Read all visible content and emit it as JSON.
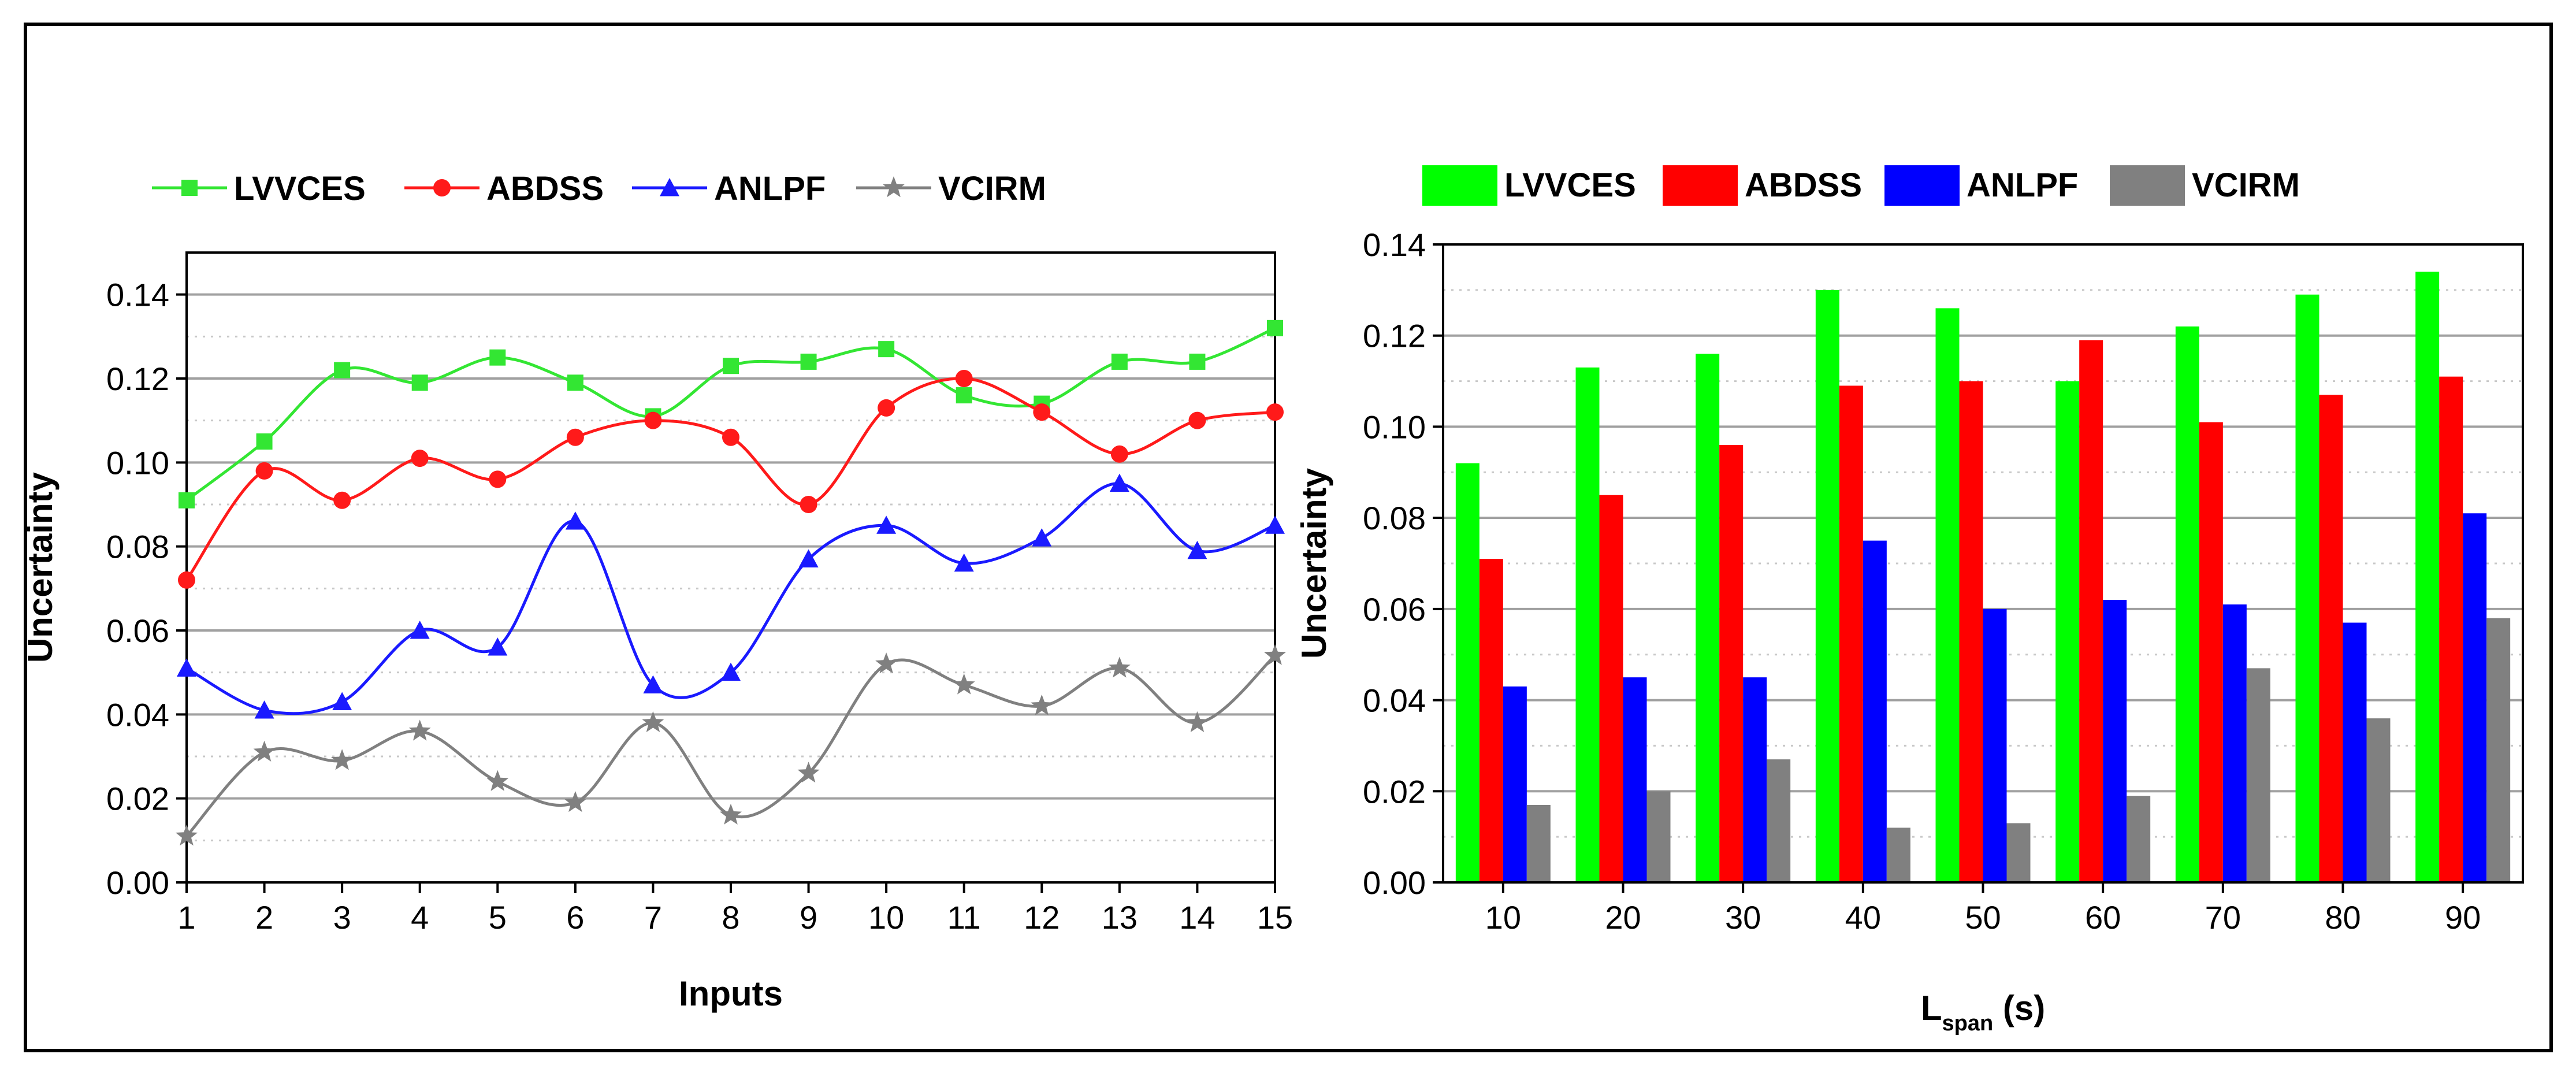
{
  "chart_data": [
    {
      "type": "line",
      "xlabel": "Inputs",
      "ylabel": "Uncertainty",
      "x": [
        1,
        2,
        3,
        4,
        5,
        6,
        7,
        8,
        9,
        10,
        11,
        12,
        13,
        14,
        15
      ],
      "xlim": [
        1,
        15
      ],
      "ylim": [
        0,
        0.15
      ],
      "yticks": [
        "0.00",
        "0.02",
        "0.04",
        "0.06",
        "0.08",
        "0.10",
        "0.12",
        "0.14"
      ],
      "grid": true,
      "legend": "top",
      "series": [
        {
          "name": "LVVCES",
          "color": "#33e633",
          "marker": "square",
          "values": [
            0.091,
            0.105,
            0.122,
            0.119,
            0.125,
            0.119,
            0.111,
            0.123,
            0.124,
            0.127,
            0.116,
            0.114,
            0.124,
            0.124,
            0.132
          ]
        },
        {
          "name": "ABDSS",
          "color": "#ff1a1a",
          "marker": "circle",
          "values": [
            0.072,
            0.098,
            0.091,
            0.101,
            0.096,
            0.106,
            0.11,
            0.106,
            0.09,
            0.113,
            0.12,
            0.112,
            0.102,
            0.11,
            0.112
          ]
        },
        {
          "name": "ANLPF",
          "color": "#1a1aff",
          "marker": "triangle",
          "values": [
            0.051,
            0.041,
            0.043,
            0.06,
            0.056,
            0.086,
            0.047,
            0.05,
            0.077,
            0.085,
            0.076,
            0.082,
            0.095,
            0.079,
            0.085
          ]
        },
        {
          "name": "VCIRM",
          "color": "#808080",
          "marker": "star",
          "values": [
            0.011,
            0.031,
            0.029,
            0.036,
            0.024,
            0.019,
            0.038,
            0.016,
            0.026,
            0.052,
            0.047,
            0.042,
            0.051,
            0.038,
            0.054
          ]
        }
      ]
    },
    {
      "type": "bar",
      "xlabel_main": "L",
      "xlabel_sub": "span",
      "xlabel_unit": " (s)",
      "ylabel": "Uncertainty",
      "categories": [
        "10",
        "20",
        "30",
        "40",
        "50",
        "60",
        "70",
        "80",
        "90"
      ],
      "ylim": [
        0,
        0.14
      ],
      "yticks": [
        "0.00",
        "0.02",
        "0.04",
        "0.06",
        "0.08",
        "0.10",
        "0.12",
        "0.14"
      ],
      "grid": true,
      "legend": "top",
      "series": [
        {
          "name": "LVVCES",
          "color": "#00ff00",
          "values": [
            0.092,
            0.113,
            0.116,
            0.13,
            0.126,
            0.11,
            0.122,
            0.129,
            0.134
          ]
        },
        {
          "name": "ABDSS",
          "color": "#ff0000",
          "values": [
            0.071,
            0.085,
            0.096,
            0.109,
            0.11,
            0.119,
            0.101,
            0.107,
            0.111
          ]
        },
        {
          "name": "ANLPF",
          "color": "#0000ff",
          "values": [
            0.043,
            0.045,
            0.045,
            0.075,
            0.06,
            0.062,
            0.061,
            0.057,
            0.081
          ]
        },
        {
          "name": "VCIRM",
          "color": "#808080",
          "values": [
            0.017,
            0.02,
            0.027,
            0.012,
            0.013,
            0.019,
            0.047,
            0.036,
            0.058
          ]
        }
      ]
    }
  ]
}
